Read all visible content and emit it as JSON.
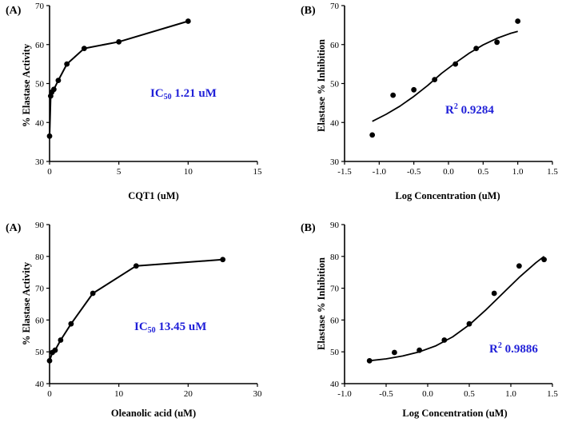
{
  "chart_data": [
    {
      "id": "top-left",
      "panel_label": "(A)",
      "type": "line",
      "xlabel": "CQT1 (uM)",
      "ylabel": "% Elastase Activity",
      "xlim": [
        0,
        15
      ],
      "xticks": [
        0,
        5,
        10,
        15
      ],
      "ylim": [
        30,
        70
      ],
      "yticks": [
        30,
        40,
        50,
        60,
        70
      ],
      "series": [
        {
          "name": "CQT1",
          "x": [
            0.0,
            0.08,
            0.16,
            0.31,
            0.63,
            1.25,
            2.5,
            5.0,
            10.0
          ],
          "y": [
            36.5,
            46.8,
            47.8,
            48.5,
            50.8,
            55.0,
            59.0,
            60.7,
            66.0
          ]
        }
      ],
      "annotation": {
        "prefix": "IC",
        "sub": "50",
        "suffix": " 1.21 uM"
      }
    },
    {
      "id": "top-right",
      "panel_label": "(B)",
      "type": "scatter",
      "xlabel": "Log Concentration (uM)",
      "ylabel": "Elastase % Inhibition",
      "xlim": [
        -1.5,
        1.5
      ],
      "xticks": [
        -1.5,
        -1.0,
        -0.5,
        0.0,
        0.5,
        1.0,
        1.5
      ],
      "ylim": [
        30,
        70
      ],
      "yticks": [
        30,
        40,
        50,
        60,
        70
      ],
      "series": [
        {
          "name": "data",
          "x": [
            -1.1,
            -0.8,
            -0.5,
            -0.2,
            0.1,
            0.4,
            0.7,
            1.0
          ],
          "y": [
            36.8,
            47.0,
            48.4,
            51.0,
            55.0,
            59.0,
            60.6,
            66.0
          ]
        },
        {
          "name": "fit",
          "kind": "curve",
          "x": [
            -1.1,
            -0.9,
            -0.7,
            -0.5,
            -0.3,
            -0.1,
            0.1,
            0.3,
            0.5,
            0.7,
            0.9,
            1.0
          ],
          "y": [
            40.3,
            42.1,
            44.2,
            46.7,
            49.5,
            52.6,
            55.3,
            57.8,
            59.9,
            61.6,
            62.9,
            63.4
          ]
        }
      ],
      "annotation": {
        "prefix": "R",
        "sup": "2",
        "suffix": " 0.9284"
      }
    },
    {
      "id": "bottom-left",
      "panel_label": "(A)",
      "type": "line",
      "xlabel": "Oleanolic acid (uM)",
      "ylabel": "% Elastase Activity",
      "xlim": [
        0,
        30
      ],
      "xticks": [
        0,
        10,
        20,
        30
      ],
      "ylim": [
        40,
        90
      ],
      "yticks": [
        40,
        50,
        60,
        70,
        80,
        90
      ],
      "series": [
        {
          "name": "Oleanolic acid",
          "x": [
            0.0,
            0.4,
            0.8,
            1.6,
            3.1,
            6.25,
            12.5,
            25.0
          ],
          "y": [
            47.2,
            49.8,
            50.5,
            53.7,
            58.8,
            68.4,
            77.0,
            79.0
          ]
        }
      ],
      "annotation": {
        "prefix": "IC",
        "sub": "50",
        "suffix": " 13.45 uM"
      }
    },
    {
      "id": "bottom-right",
      "panel_label": "(B)",
      "type": "scatter",
      "xlabel": "Log Concentration (uM)",
      "ylabel": "Elastase % Inhibition",
      "xlim": [
        -1.0,
        1.5
      ],
      "xticks": [
        -1.0,
        -0.5,
        0.0,
        0.5,
        1.0,
        1.5
      ],
      "ylim": [
        40,
        90
      ],
      "yticks": [
        40,
        50,
        60,
        70,
        80,
        90
      ],
      "series": [
        {
          "name": "data",
          "x": [
            -0.7,
            -0.4,
            -0.1,
            0.2,
            0.5,
            0.8,
            1.1,
            1.4
          ],
          "y": [
            47.2,
            49.8,
            50.5,
            53.7,
            58.8,
            68.4,
            77.0,
            79.0
          ]
        },
        {
          "name": "fit",
          "kind": "curve",
          "x": [
            -0.7,
            -0.5,
            -0.3,
            -0.1,
            0.1,
            0.3,
            0.5,
            0.7,
            0.9,
            1.1,
            1.3,
            1.4
          ],
          "y": [
            47.2,
            47.8,
            48.7,
            50.0,
            51.9,
            54.7,
            58.5,
            63.2,
            68.3,
            73.4,
            78.0,
            80.0
          ]
        }
      ],
      "annotation": {
        "prefix": "R",
        "sup": "2",
        "suffix": " 0.9886"
      }
    }
  ]
}
